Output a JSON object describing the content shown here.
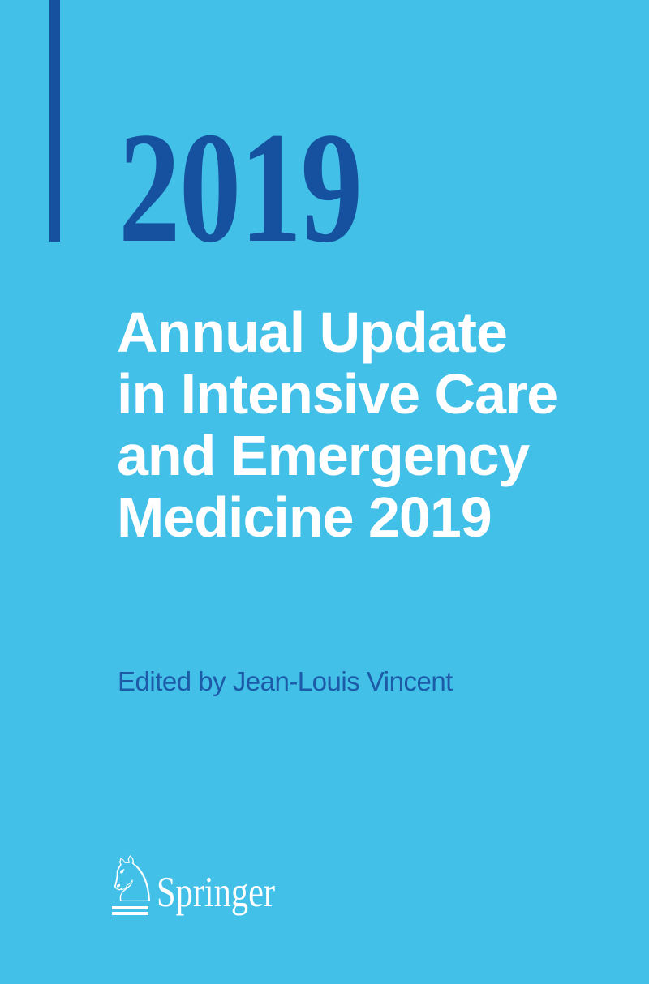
{
  "cover": {
    "year": "2019",
    "title_lines": [
      "Annual Update",
      "in Intensive Care",
      "and Emergency",
      "Medicine 2019"
    ],
    "editor": "Edited by Jean-Louis Vincent",
    "publisher": {
      "name": "Springer",
      "logo_glyph": "♘"
    },
    "colors": {
      "background": "#43c0e8",
      "accent_dark_blue": "#15519f",
      "editor_text_blue": "#1d5aa8",
      "text_white": "#ffffff"
    }
  }
}
